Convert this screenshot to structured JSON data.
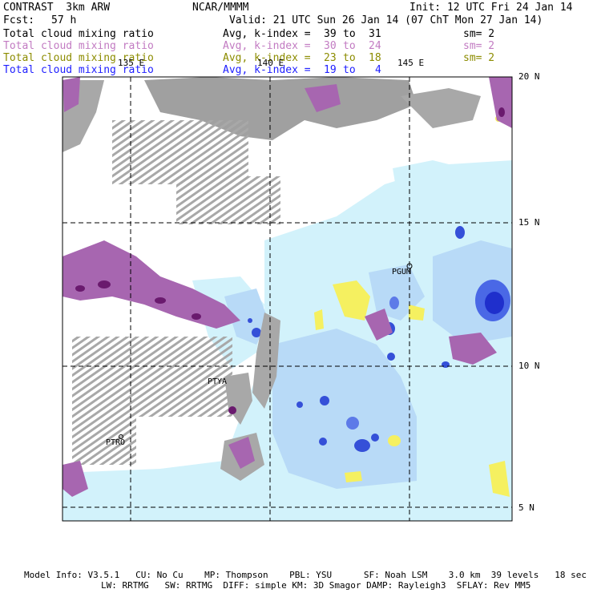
{
  "header": {
    "product": "CONTRAST  3km ARW",
    "org": "NCAR/MMMM",
    "init": "Init: 12 UTC Fri 24 Jan 14",
    "fcst_label": "Fcst:",
    "fcst_value": "57 h",
    "valid": "Valid: 21 UTC Sun 26 Jan 14 (07 ChT Mon 27 Jan 14)"
  },
  "legend": [
    {
      "field": "Total cloud mixing ratio",
      "stat": "Avg, k-index =",
      "k1": "39",
      "to": "to",
      "k2": "31",
      "sm": "sm= 2",
      "color": "#000000"
    },
    {
      "field": "Total cloud mixing ratio",
      "stat": "Avg, k-index =",
      "k1": "30",
      "to": "to",
      "k2": "24",
      "sm": "sm= 2",
      "color": "#c27bc2"
    },
    {
      "field": "Total cloud mixing ratio",
      "stat": "Avg, k-index =",
      "k1": "23",
      "to": "to",
      "k2": "18",
      "sm": "sm= 2",
      "color": "#8c8c00"
    },
    {
      "field": "Total cloud mixing ratio",
      "stat": "Avg, k-index =",
      "k1": "19",
      "to": "to",
      "k2": "4",
      "sm": "",
      "color": "#2020ff"
    }
  ],
  "map": {
    "lon_labels": [
      "135 E",
      "140 E",
      "145 E"
    ],
    "lat_labels": [
      "20 N",
      "15 N",
      "10 N",
      "5 N"
    ],
    "stations": [
      "PGUM",
      "PTYA",
      "PTRO"
    ]
  },
  "footer": {
    "line1": "Model Info: V3.5.1   CU: No Cu    MP: Thompson    PBL: YSU      SF: Noah LSM    3.0 km  39 levels   18 sec",
    "line2": "LW: RRTMG   SW: RRTMG  DIFF: simple KM: 3D Smagor DAMP: Rayleigh3  SFLAY: Rev MM5"
  },
  "colors": {
    "gray": "#a0a0a0",
    "purple": "#9b4fa8",
    "darkpurple": "#6a1a6e",
    "lightblue": "#d2f2fb",
    "blue": "#a6c8f5",
    "darkblue": "#2a40d8",
    "yellow": "#f5f060"
  }
}
